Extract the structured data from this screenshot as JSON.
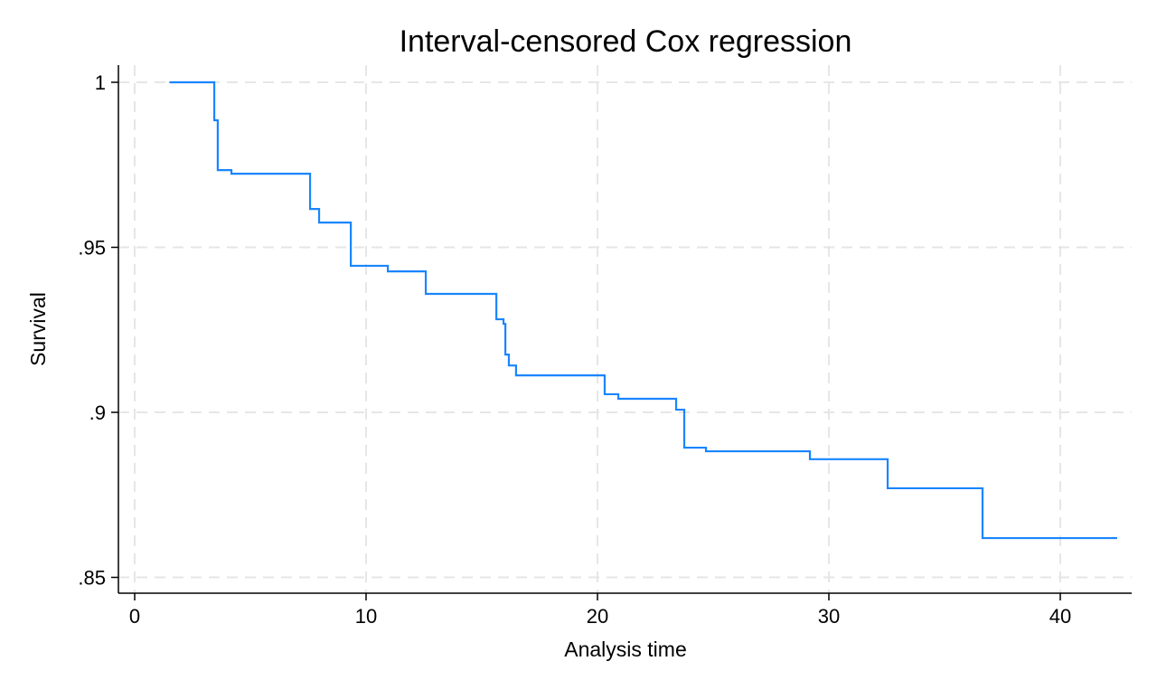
{
  "chart_data": {
    "type": "line",
    "step": true,
    "title": "Interval-censored Cox regression",
    "xlabel": "Analysis time",
    "ylabel": "Survival",
    "xlim": [
      -0.7,
      43
    ],
    "ylim": [
      0.845,
      1.005
    ],
    "xticks": [
      0,
      10,
      20,
      30,
      40
    ],
    "xtick_labels": [
      "0",
      "10",
      "20",
      "30",
      "40"
    ],
    "yticks": [
      1,
      0.95,
      0.9,
      0.85
    ],
    "ytick_labels": [
      "1",
      ".95",
      ".9",
      ".85"
    ],
    "grid": true,
    "line_color": "#1a85ff",
    "series": [
      {
        "x": [
          1.5,
          3.44,
          3.59,
          4.18,
          7.58,
          7.97,
          9.34,
          10.94,
          12.58,
          15.63,
          15.94,
          16.02,
          16.17,
          16.48,
          20.31,
          20.9,
          23.4,
          23.75,
          24.69,
          29.18,
          32.54,
          36.64,
          42.46
        ],
        "y": [
          1.0,
          0.9885,
          0.9734,
          0.9723,
          0.9616,
          0.9575,
          0.9444,
          0.9427,
          0.9359,
          0.9282,
          0.9268,
          0.9175,
          0.9142,
          0.9112,
          0.9055,
          0.9041,
          0.9008,
          0.8893,
          0.8882,
          0.8858,
          0.877,
          0.8619,
          0.8619
        ]
      }
    ]
  }
}
